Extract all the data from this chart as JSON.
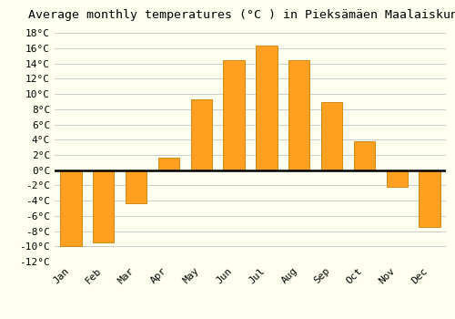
{
  "title": "Average monthly temperatures (°C ) in Pieksämäen Maalaiskunta",
  "months": [
    "Jan",
    "Feb",
    "Mar",
    "Apr",
    "May",
    "Jun",
    "Jul",
    "Aug",
    "Sep",
    "Oct",
    "Nov",
    "Dec"
  ],
  "values": [
    -10.0,
    -9.5,
    -4.3,
    1.7,
    9.3,
    14.5,
    16.4,
    14.5,
    9.0,
    3.8,
    -2.2,
    -7.4
  ],
  "bar_color": "#FFA020",
  "bar_edge_color": "#CC8000",
  "background_color": "#FFFFF0",
  "grid_color": "#CCCCCC",
  "ylim": [
    -12,
    19
  ],
  "yticks": [
    -12,
    -10,
    -8,
    -6,
    -4,
    -2,
    0,
    2,
    4,
    6,
    8,
    10,
    12,
    14,
    16,
    18
  ],
  "title_fontsize": 9.5,
  "tick_fontsize": 8,
  "font_family": "monospace"
}
